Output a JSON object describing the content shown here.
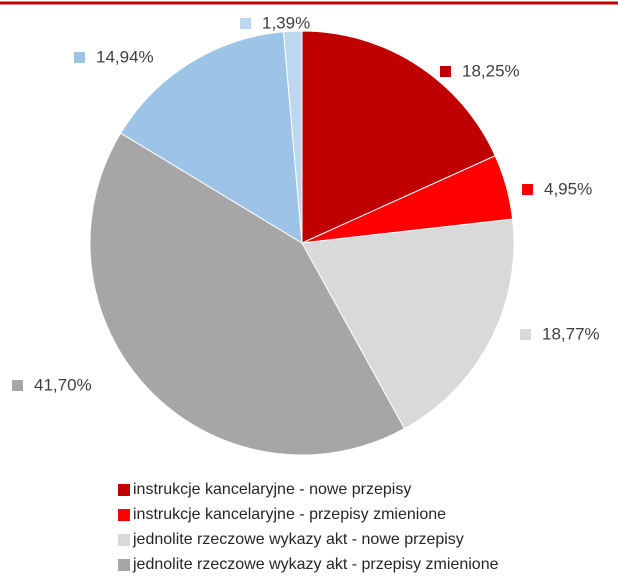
{
  "chart_data": {
    "type": "pie",
    "categories": [
      "instrukcje kancelaryjne - nowe przepisy",
      "instrukcje kancelaryjne - przepisy zmienione",
      "jednolite rzeczowe wykazy akt - nowe przepisy",
      "jednolite rzeczowe wykazy akt - przepisy zmienione",
      null,
      null
    ],
    "values": [
      18.25,
      4.95,
      18.77,
      41.7,
      14.94,
      1.39
    ],
    "value_labels": [
      "18,25%",
      "4,95%",
      "18,77%",
      "41,70%",
      "14,94%",
      "1,39%"
    ],
    "colors": [
      "#c00000",
      "#ff0000",
      "#d9d9d9",
      "#a6a6a6",
      "#9dc3e6",
      "#bdd7ee"
    ]
  }
}
